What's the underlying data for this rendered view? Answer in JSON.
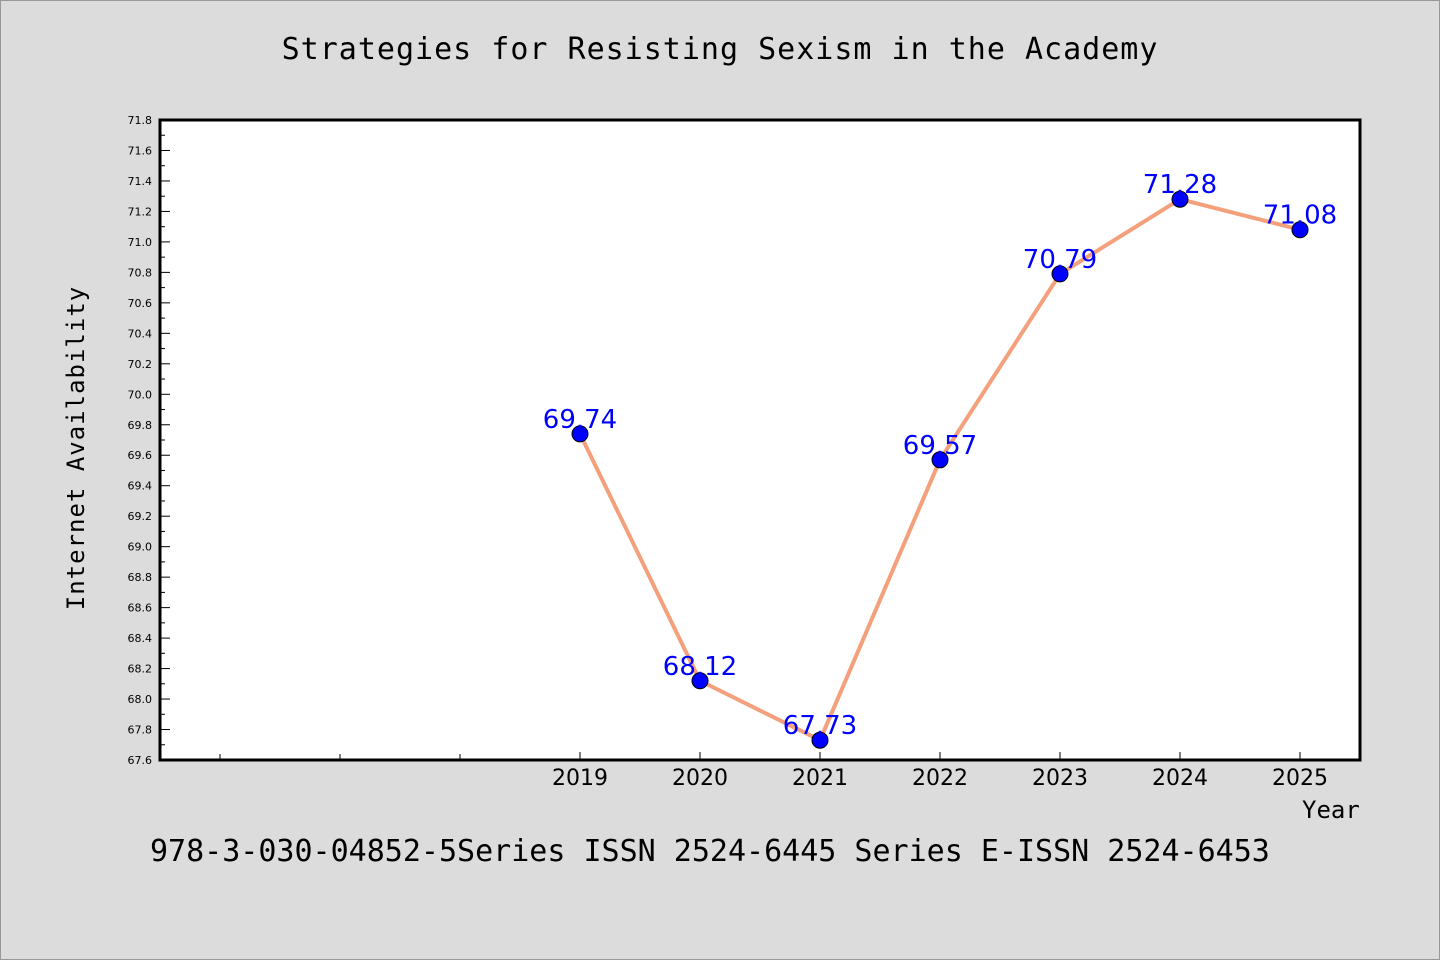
{
  "colors": {
    "background": "#dcdcdc",
    "plot_background": "#ffffff",
    "line": "#f4a07c",
    "marker": "#0000ff",
    "data_label": "#0000ff"
  },
  "footer": {
    "text": "978-3-030-04852-5Series ISSN 2524-6445 Series E-ISSN 2524-6453"
  },
  "chart_data": {
    "type": "line",
    "title": "Strategies for Resisting Sexism in the Academy",
    "xlabel": "Year",
    "ylabel": "Internet Availability",
    "categories": [
      "2019",
      "2020",
      "2021",
      "2022",
      "2023",
      "2024",
      "2025"
    ],
    "x_empty_slots_before": 3,
    "series": [
      {
        "values": [
          69.74,
          68.12,
          67.73,
          69.57,
          70.79,
          71.28,
          71.08
        ],
        "labels": [
          "69.74",
          "68.12",
          "67.73",
          "69.57",
          "70.79",
          "71.28",
          "71.08"
        ]
      }
    ],
    "ylim": [
      67.6,
      71.8
    ],
    "yticks": [
      "67.6",
      "67.8",
      "68.0",
      "68.2",
      "68.4",
      "68.6",
      "68.8",
      "69.0",
      "69.2",
      "69.4",
      "69.6",
      "69.8",
      "70.0",
      "70.2",
      "70.4",
      "70.6",
      "70.8",
      "71.0",
      "71.2",
      "71.4",
      "71.6",
      "71.8"
    ],
    "grid": false,
    "legend": "none"
  }
}
